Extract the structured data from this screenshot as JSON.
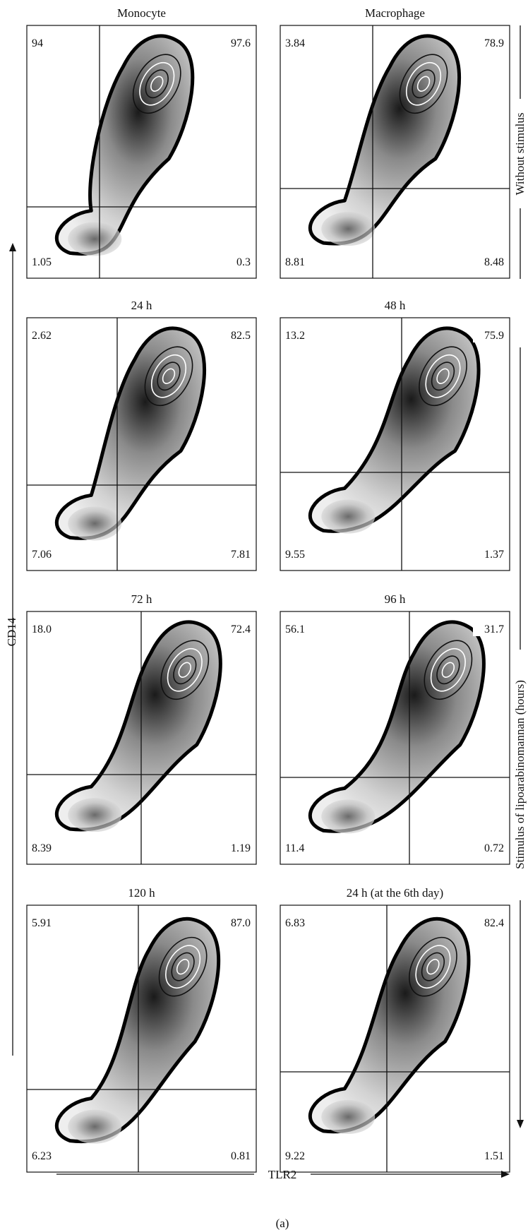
{
  "figure_label": "(a)",
  "axes": {
    "x_label": "TLR2",
    "y_label": "CD14"
  },
  "row_groups": [
    {
      "label": "Without stimulus"
    },
    {
      "label": "Stimulus of lipoarabinomannan (hours)"
    }
  ],
  "chart_data": [
    {
      "type": "contour",
      "title": "Monocyte",
      "xlabel": "TLR2",
      "ylabel": "CD14",
      "quadrants": {
        "upper_left": "94",
        "upper_right": "97.6",
        "lower_left": "1.05",
        "lower_right": "0.3"
      }
    },
    {
      "type": "contour",
      "title": "Macrophage",
      "xlabel": "TLR2",
      "ylabel": "CD14",
      "quadrants": {
        "upper_left": "3.84",
        "upper_right": "78.9",
        "lower_left": "8.81",
        "lower_right": "8.48"
      }
    },
    {
      "type": "contour",
      "title": "24 h",
      "xlabel": "TLR2",
      "ylabel": "CD14",
      "quadrants": {
        "upper_left": "2.62",
        "upper_right": "82.5",
        "lower_left": "7.06",
        "lower_right": "7.81"
      }
    },
    {
      "type": "contour",
      "title": "48 h",
      "xlabel": "TLR2",
      "ylabel": "CD14",
      "quadrants": {
        "upper_left": "13.2",
        "upper_right": "75.9",
        "lower_left": "9.55",
        "lower_right": "1.37"
      }
    },
    {
      "type": "contour",
      "title": "72 h",
      "xlabel": "TLR2",
      "ylabel": "CD14",
      "quadrants": {
        "upper_left": "18.0",
        "upper_right": "72.4",
        "lower_left": "8.39",
        "lower_right": "1.19"
      }
    },
    {
      "type": "contour",
      "title": "96 h",
      "xlabel": "TLR2",
      "ylabel": "CD14",
      "quadrants": {
        "upper_left": "56.1",
        "upper_right": "31.7",
        "lower_left": "11.4",
        "lower_right": "0.72"
      }
    },
    {
      "type": "contour",
      "title": "120 h",
      "xlabel": "TLR2",
      "ylabel": "CD14",
      "quadrants": {
        "upper_left": "5.91",
        "upper_right": "87.0",
        "lower_left": "6.23",
        "lower_right": "0.81"
      }
    },
    {
      "type": "contour",
      "title": "24 h (at the 6th day)",
      "xlabel": "TLR2",
      "ylabel": "CD14",
      "quadrants": {
        "upper_left": "6.83",
        "upper_right": "82.4",
        "lower_left": "9.22",
        "lower_right": "1.51"
      }
    }
  ]
}
